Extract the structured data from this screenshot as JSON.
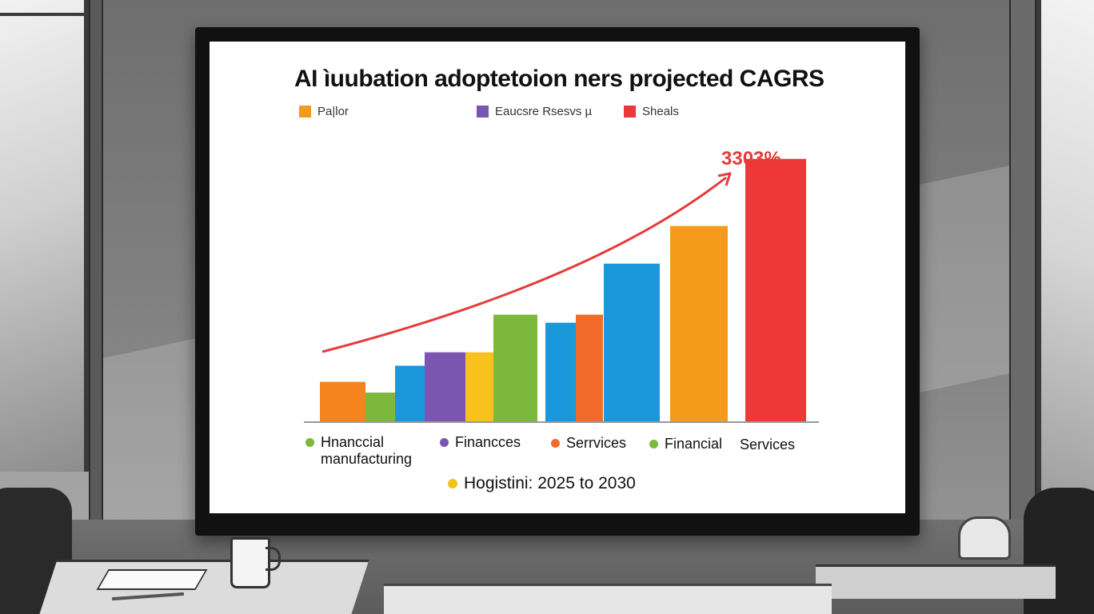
{
  "slide": {
    "title": "AI ìuubation adoptetoion ners projected CAGRS",
    "legend": [
      {
        "label": "Pa|lor",
        "color": "#f59a1a"
      },
      {
        "label": "Eaucsre Rsesvs µ",
        "color": "#7b55b0"
      },
      {
        "label": "Sheals",
        "color": "#ee3838"
      }
    ],
    "peak_label": "3303%",
    "categories": [
      {
        "label": "Hnanccial manufacturing",
        "color": "#7cb83b"
      },
      {
        "label": "Financces",
        "color": "#7b55b0"
      },
      {
        "label": "Serrvices",
        "color": "#f26b2a"
      },
      {
        "label": "Financial",
        "color": "#7cb83b"
      },
      {
        "label": "Services",
        "color": ""
      }
    ],
    "footnote": {
      "label": "Hogistini: 2025 to 2030",
      "color": "#f5c21a"
    }
  },
  "chart_data": {
    "type": "bar",
    "values": [
      0.15,
      0.11,
      0.21,
      0.26,
      0.26,
      0.4,
      0.37,
      0.4,
      0.59,
      0.73,
      0.98
    ],
    "colors": [
      "#f5841f",
      "#7cb83b",
      "#1b97dc",
      "#7b55b0",
      "#f8c21c",
      "#7cb83b",
      "#1b97dc",
      "#f26b2a",
      "#1b97dc",
      "#f59a1a",
      "#ee3838"
    ],
    "ylim": [
      0,
      1
    ],
    "grid": false,
    "legend_position": "top-left",
    "trend_arrow": true
  }
}
